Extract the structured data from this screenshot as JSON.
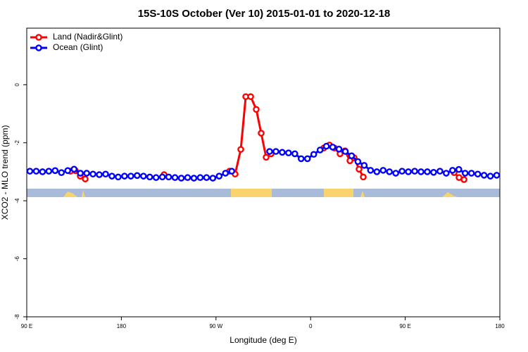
{
  "chart_data": {
    "type": "line",
    "title": "15S-10S October (Ver 10)   2015-01-01 to 2020-12-18",
    "xlabel": "Longitude (deg E)",
    "ylabel": "XCO2 - MLO trend (ppm)",
    "xlim": [
      90,
      540
    ],
    "ylim": [
      -8,
      1.95
    ],
    "xticks": [
      {
        "value": 90,
        "label": "90 E"
      },
      180,
      {
        "value": 270,
        "label": "90 W"
      },
      {
        "value": 360,
        "label": "0"
      },
      {
        "value": 450,
        "label": "90 E"
      },
      180.0001
    ],
    "yticks": [
      0,
      -2,
      -4,
      -6,
      -8
    ],
    "legend": "top-left",
    "series": [
      {
        "name": "Land (Nadir&Glint)",
        "color": "#ff0000",
        "x": [
          131.5,
          136.2,
          140.9,
          145.6,
          null,
          220.6,
          null,
          282.9,
          288.2,
          293.6,
          298.3,
          303.0,
          308.3,
          313.0,
          317.7,
          322.4,
          null,
          372.6,
          377.9,
          382.6,
          388.0,
          392.7,
          397.4,
          401.4,
          406.1,
          410.1,
          null,
          496.5,
          501.2,
          505.9
        ],
        "values": [
          -2.98,
          -2.96,
          -3.15,
          -3.25,
          null,
          -3.1,
          null,
          -2.98,
          -3.08,
          -2.23,
          -0.41,
          -0.41,
          -0.85,
          -1.67,
          -2.5,
          -2.38,
          null,
          -2.18,
          -2.08,
          -2.18,
          -2.38,
          -2.28,
          -2.62,
          -2.52,
          -2.91,
          -3.18,
          null,
          -3.03,
          -3.2,
          -3.27
        ]
      },
      {
        "name": "Ocean (Glint)",
        "color": "#0000ff",
        "x": [
          93,
          99,
          105,
          111,
          117,
          123,
          129,
          135,
          141,
          147,
          153,
          159,
          165,
          171,
          177,
          183,
          189,
          195,
          201,
          207,
          213,
          219,
          225,
          231,
          237,
          243,
          249,
          255,
          261,
          267,
          273,
          279,
          285,
          291,
          297,
          303,
          309,
          315,
          321,
          327,
          333,
          339,
          345,
          351,
          357,
          363,
          369,
          375,
          381,
          387,
          393,
          399,
          405,
          411,
          417,
          423,
          429,
          435,
          441,
          447,
          453,
          459,
          465,
          471,
          477,
          483,
          489,
          495,
          501,
          507,
          513,
          519,
          525,
          531,
          537
        ],
        "values": [
          -2.98,
          -2.98,
          -3.0,
          -2.98,
          -2.96,
          -3.03,
          -2.96,
          -2.91,
          -3.05,
          -3.05,
          -3.08,
          -3.1,
          -3.08,
          -3.15,
          -3.18,
          -3.15,
          -3.15,
          -3.13,
          -3.15,
          -3.18,
          -3.2,
          -3.18,
          -3.18,
          -3.2,
          -3.22,
          -3.2,
          -3.22,
          -3.2,
          -3.2,
          -3.22,
          -3.15,
          -3.05,
          -2.98,
          null,
          null,
          null,
          null,
          null,
          -2.3,
          -2.3,
          -2.33,
          -2.35,
          -2.38,
          -2.55,
          -2.55,
          -2.4,
          -2.25,
          -2.12,
          -2.15,
          -2.22,
          -2.3,
          -2.45,
          -2.65,
          -2.78,
          -2.95,
          -3.0,
          -2.95,
          -3.0,
          -3.05,
          -2.98,
          -3.0,
          -2.98,
          -3.0,
          -3.0,
          -3.02,
          -2.98,
          -3.05,
          -2.95,
          -2.92,
          -3.05,
          -3.05,
          -3.08,
          -3.12,
          -3.15,
          -3.12
        ]
      }
    ]
  }
}
